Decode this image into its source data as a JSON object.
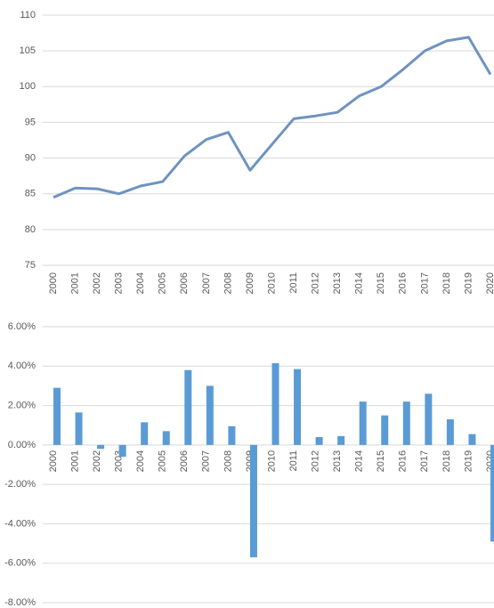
{
  "chart_data": [
    {
      "type": "line",
      "categories": [
        "2000",
        "2001",
        "2002",
        "2003",
        "2004",
        "2005",
        "2006",
        "2007",
        "2008",
        "2009",
        "2010",
        "2011",
        "2012",
        "2013",
        "2014",
        "2015",
        "2016",
        "2017",
        "2018",
        "2019",
        "2020"
      ],
      "values": [
        84.5,
        85.8,
        85.7,
        85.0,
        86.1,
        86.7,
        90.3,
        92.6,
        93.6,
        88.3,
        91.9,
        95.5,
        95.9,
        96.4,
        98.7,
        100.0,
        102.4,
        105.0,
        106.4,
        106.9,
        101.7
      ],
      "color": "#6f93c0",
      "ylim": [
        75,
        110
      ],
      "yticks": [
        75,
        80,
        85,
        90,
        95,
        100,
        105,
        110
      ],
      "grid": true
    },
    {
      "type": "bar",
      "categories": [
        "2000",
        "2001",
        "2002",
        "2003",
        "2004",
        "2005",
        "2006",
        "2007",
        "2008",
        "2009",
        "2010",
        "2011",
        "2012",
        "2013",
        "2014",
        "2015",
        "2016",
        "2017",
        "2018",
        "2019",
        "2020"
      ],
      "values": [
        2.9,
        1.65,
        -0.2,
        -0.6,
        1.15,
        0.7,
        3.8,
        3.0,
        0.95,
        -5.7,
        4.15,
        3.85,
        0.4,
        0.45,
        2.2,
        1.5,
        2.2,
        2.6,
        1.3,
        0.55,
        -4.9
      ],
      "color": "#5b9bd5",
      "ylim": [
        -8,
        6
      ],
      "yticks": [
        {
          "value": -8,
          "label": "-8.00%"
        },
        {
          "value": -6,
          "label": "-6.00%"
        },
        {
          "value": -4,
          "label": "-4.00%"
        },
        {
          "value": -2,
          "label": "-2.00%"
        },
        {
          "value": 0,
          "label": "0.00%"
        },
        {
          "value": 2,
          "label": "2.00%"
        },
        {
          "value": 4,
          "label": "4.00%"
        },
        {
          "value": 6,
          "label": "6.00%"
        }
      ],
      "grid": true
    }
  ]
}
